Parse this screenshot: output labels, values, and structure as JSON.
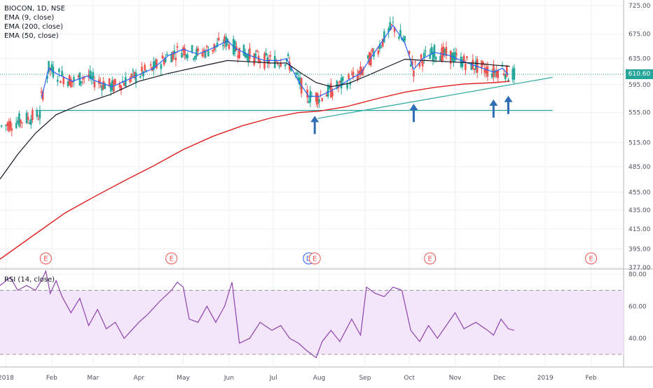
{
  "legend": {
    "symbol": "BIOCON, 1D, NSE",
    "ema9": "EMA (9, close)",
    "ema200": "EMA (200, close)",
    "ema50": "EMA (50, close)",
    "rsi": "RSI (14, close)"
  },
  "last_price": "610.60",
  "colors": {
    "up": "#26a69a",
    "down": "#ef5350",
    "ema9": "#2962ff",
    "ema50": "#131722",
    "ema200": "#e01e1e",
    "trendline": "#26a69a",
    "support": "#26a69a",
    "arrow": "#2e6eb5",
    "rsi_line": "#8e44ad",
    "rsi_band": "#f3e5fa",
    "axis_text": "#50535e",
    "grid": "#eef0f3"
  },
  "chart_data": [
    {
      "type": "candlestick",
      "title": "BIOCON, 1D, NSE",
      "x_tick_labels": [
        "2018",
        "Feb",
        "Mar",
        "Apr",
        "May",
        "Jun",
        "Jul",
        "Aug",
        "Sep",
        "Oct",
        "Nov",
        "Dec",
        "2019",
        "Feb"
      ],
      "x_tick_days": [
        0,
        31,
        59,
        90,
        120,
        151,
        181,
        212,
        243,
        273,
        304,
        334,
        365,
        396
      ],
      "x_range_days": [
        -4,
        418
      ],
      "y_tick_labels": [
        "725.00",
        "675.00",
        "635.00",
        "595.00",
        "555.00",
        "515.00",
        "485.00",
        "455.00",
        "435.00",
        "415.00",
        "395.00",
        "377.00"
      ],
      "y_range": [
        377,
        735
      ],
      "y_scale": "log",
      "last_value": 610.6,
      "series": [
        {
          "name": "EMA (9, close)",
          "points": [
            [
              24,
              575
            ],
            [
              29,
              620
            ],
            [
              34,
              612
            ],
            [
              45,
              600
            ],
            [
              55,
              608
            ],
            [
              59,
              602
            ],
            [
              64,
              598
            ],
            [
              72,
              592
            ],
            [
              80,
              600
            ],
            [
              90,
              610
            ],
            [
              100,
              620
            ],
            [
              110,
              640
            ],
            [
              120,
              650
            ],
            [
              130,
              642
            ],
            [
              140,
              652
            ],
            [
              150,
              664
            ],
            [
              155,
              652
            ],
            [
              165,
              640
            ],
            [
              175,
              632
            ],
            [
              185,
              632
            ],
            [
              190,
              635
            ],
            [
              198,
              600
            ],
            [
              205,
              578
            ],
            [
              212,
              578
            ],
            [
              222,
              588
            ],
            [
              232,
              602
            ],
            [
              240,
              612
            ],
            [
              248,
              640
            ],
            [
              255,
              664
            ],
            [
              262,
              690
            ],
            [
              270,
              660
            ],
            [
              276,
              618
            ],
            [
              282,
              635
            ],
            [
              290,
              645
            ],
            [
              300,
              640
            ],
            [
              310,
              630
            ],
            [
              320,
              622
            ],
            [
              330,
              614
            ],
            [
              336,
              620
            ],
            [
              340,
              610
            ]
          ]
        },
        {
          "name": "EMA (50, close)",
          "points": [
            [
              -4,
              470
            ],
            [
              8,
              500
            ],
            [
              20,
              527
            ],
            [
              34,
              552
            ],
            [
              50,
              566
            ],
            [
              70,
              580
            ],
            [
              90,
              600
            ],
            [
              110,
              612
            ],
            [
              130,
              622
            ],
            [
              150,
              632
            ],
            [
              165,
              630
            ],
            [
              180,
              628
            ],
            [
              190,
              628
            ],
            [
              200,
              612
            ],
            [
              210,
              598
            ],
            [
              220,
              592
            ],
            [
              232,
              597
            ],
            [
              246,
              610
            ],
            [
              258,
              622
            ],
            [
              270,
              634
            ],
            [
              284,
              632
            ],
            [
              300,
              630
            ],
            [
              316,
              628
            ],
            [
              330,
              625
            ],
            [
              341,
              623
            ]
          ]
        },
        {
          "name": "EMA (200, close)",
          "points": [
            [
              -4,
              385
            ],
            [
              20,
              410
            ],
            [
              40,
              432
            ],
            [
              60,
              450
            ],
            [
              80,
              468
            ],
            [
              100,
              486
            ],
            [
              120,
              506
            ],
            [
              140,
              523
            ],
            [
              160,
              537
            ],
            [
              180,
              548
            ],
            [
              198,
              555
            ],
            [
              212,
              557
            ],
            [
              230,
              563
            ],
            [
              250,
              574
            ],
            [
              270,
              584
            ],
            [
              290,
              591
            ],
            [
              310,
              596
            ],
            [
              330,
              598
            ],
            [
              341,
              600
            ]
          ]
        }
      ],
      "trendline": [
        [
          211,
          547
        ],
        [
          370,
          606
        ]
      ],
      "support_line": [
        [
          20,
          558
        ],
        [
          370,
          558
        ]
      ],
      "annotations": [
        {
          "label": "E",
          "day": 27
        },
        {
          "label": "E",
          "day": 112
        },
        {
          "label": "D",
          "day": 205
        },
        {
          "label": "E",
          "day": 209
        },
        {
          "label": "E",
          "day": 287
        },
        {
          "label": "E",
          "day": 396
        }
      ],
      "arrows_up": [
        {
          "day": 209,
          "price": 526
        },
        {
          "day": 276,
          "price": 542
        },
        {
          "day": 330,
          "price": 548
        },
        {
          "day": 340,
          "price": 553
        }
      ]
    },
    {
      "type": "line",
      "title": "RSI (14, close)",
      "y_tick_labels": [
        "80.00",
        "60.00",
        "40.00"
      ],
      "y_range": [
        23,
        82
      ],
      "band": [
        30,
        70
      ],
      "series": [
        {
          "name": "RSI (14, close)",
          "points": [
            [
              -4,
              73
            ],
            [
              3,
              78
            ],
            [
              8,
              70
            ],
            [
              14,
              73
            ],
            [
              20,
              70
            ],
            [
              24,
              76
            ],
            [
              27,
              82
            ],
            [
              30,
              68
            ],
            [
              34,
              76
            ],
            [
              38,
              66
            ],
            [
              44,
              56
            ],
            [
              50,
              65
            ],
            [
              56,
              48
            ],
            [
              62,
              58
            ],
            [
              68,
              46
            ],
            [
              74,
              50
            ],
            [
              80,
              40
            ],
            [
              85,
              45
            ],
            [
              90,
              50
            ],
            [
              96,
              55
            ],
            [
              104,
              63
            ],
            [
              112,
              70
            ],
            [
              116,
              75
            ],
            [
              120,
              72
            ],
            [
              124,
              52
            ],
            [
              130,
              50
            ],
            [
              136,
              60
            ],
            [
              142,
              50
            ],
            [
              148,
              60
            ],
            [
              153,
              75
            ],
            [
              158,
              37
            ],
            [
              165,
              40
            ],
            [
              172,
              50
            ],
            [
              180,
              45
            ],
            [
              186,
              48
            ],
            [
              192,
              40
            ],
            [
              198,
              37
            ],
            [
              204,
              32
            ],
            [
              210,
              28
            ],
            [
              214,
              38
            ],
            [
              220,
              45
            ],
            [
              226,
              38
            ],
            [
              234,
              52
            ],
            [
              240,
              42
            ],
            [
              244,
              72
            ],
            [
              250,
              68
            ],
            [
              256,
              66
            ],
            [
              262,
              72
            ],
            [
              268,
              70
            ],
            [
              274,
              45
            ],
            [
              280,
              38
            ],
            [
              286,
              48
            ],
            [
              292,
              40
            ],
            [
              298,
              48
            ],
            [
              304,
              56
            ],
            [
              310,
              46
            ],
            [
              318,
              50
            ],
            [
              326,
              45
            ],
            [
              330,
              42
            ],
            [
              335,
              52
            ],
            [
              340,
              46
            ],
            [
              344,
              45
            ]
          ]
        }
      ]
    }
  ]
}
